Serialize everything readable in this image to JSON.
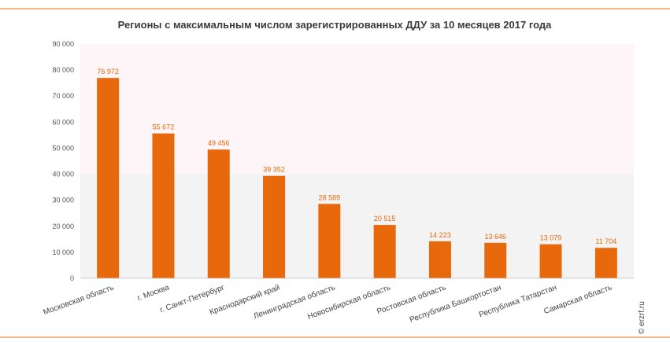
{
  "chart_data": {
    "type": "bar",
    "title": "Регионы с максимальным числом зарегистрированных ДДУ за 10 месяцев 2017 года",
    "categories": [
      "Московская область",
      "г. Москва",
      "г. Санкт-Петербург",
      "Краснодарский край",
      "Ленинградская область",
      "Новосибирская область",
      "Ростовская область",
      "Республика Башкортостан",
      "Республика Татарстан",
      "Самарская область"
    ],
    "values": [
      76972,
      55672,
      49456,
      39352,
      28589,
      20515,
      14223,
      13646,
      13079,
      11704
    ],
    "value_labels": [
      "76 972",
      "55 672",
      "49 456",
      "39 352",
      "28 589",
      "20 515",
      "14 223",
      "13 646",
      "13 079",
      "11 704"
    ],
    "yticks": [
      0,
      10000,
      20000,
      30000,
      40000,
      50000,
      60000,
      70000,
      80000,
      90000
    ],
    "ytick_labels": [
      "0",
      "10 000",
      "20 000",
      "30 000",
      "40 000",
      "50 000",
      "60 000",
      "70 000",
      "80 000",
      "90 000"
    ],
    "ylim": [
      0,
      90000
    ],
    "xlabel": "",
    "ylabel": "",
    "grid": false,
    "colors": {
      "bar": "#e8690c",
      "frame_line": "#e8690c",
      "band_top": "#fdf5f7",
      "band_bottom": "#f3f3f3"
    }
  },
  "credit": "© erzrf.ru"
}
